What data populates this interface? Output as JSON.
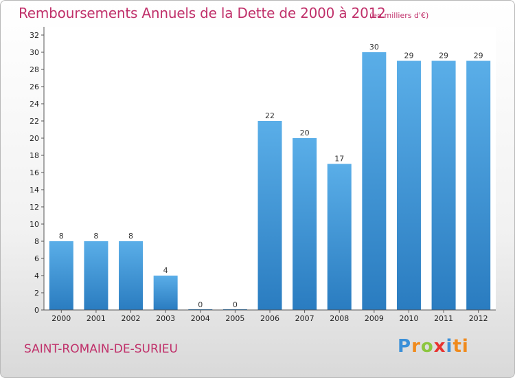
{
  "header": {
    "title": "Remboursements Annuels de la Dette de 2000 à 2012",
    "unit": "(en milliers d'€)"
  },
  "footer": {
    "commune": "SAINT-ROMAIN-DE-SURIEU",
    "logo": [
      "P",
      "r",
      "o",
      "x",
      "i",
      "ti"
    ]
  },
  "colors": {
    "bar_top": "#5aaee8",
    "bar_bottom": "#2a7cc0",
    "title": "#c0306a"
  },
  "chart_data": {
    "type": "bar",
    "title": "Remboursements Annuels de la Dette de 2000 à 2012",
    "subtitle": "(en milliers d'€)",
    "categories": [
      "2000",
      "2001",
      "2002",
      "2003",
      "2004",
      "2005",
      "2006",
      "2007",
      "2008",
      "2009",
      "2010",
      "2011",
      "2012"
    ],
    "values": [
      8,
      8,
      8,
      4,
      0,
      0,
      22,
      20,
      17,
      30,
      29,
      29,
      29
    ],
    "ylim": [
      0,
      32
    ],
    "yticks": [
      0,
      2,
      4,
      6,
      8,
      10,
      12,
      14,
      16,
      18,
      20,
      22,
      24,
      26,
      28,
      30,
      32
    ],
    "grid": false,
    "legend": "none"
  }
}
